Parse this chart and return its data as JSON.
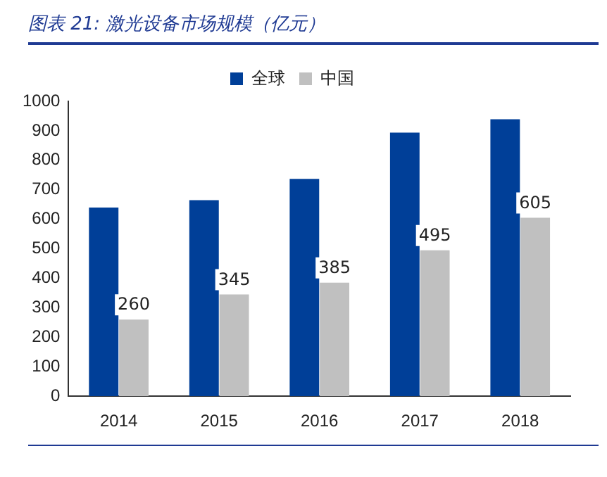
{
  "chart_data": {
    "type": "bar",
    "title": "图表 21: 激光设备市场规模（亿元）",
    "categories": [
      "2014",
      "2015",
      "2016",
      "2017",
      "2018"
    ],
    "series": [
      {
        "name": "全球",
        "color": "#003f98",
        "values": [
          640,
          665,
          737,
          894,
          939
        ]
      },
      {
        "name": "中国",
        "color": "#c0c0c0",
        "values": [
          260,
          345,
          385,
          495,
          605
        ],
        "value_labels": [
          "260",
          "345",
          "385",
          "495",
          "605"
        ]
      }
    ],
    "ylim": [
      0,
      1000
    ],
    "yticks": [
      0,
      100,
      200,
      300,
      400,
      500,
      600,
      700,
      800,
      900,
      {
        "value": 1000,
        "label": "1000"
      }
    ],
    "grid": false,
    "legend": "top"
  }
}
